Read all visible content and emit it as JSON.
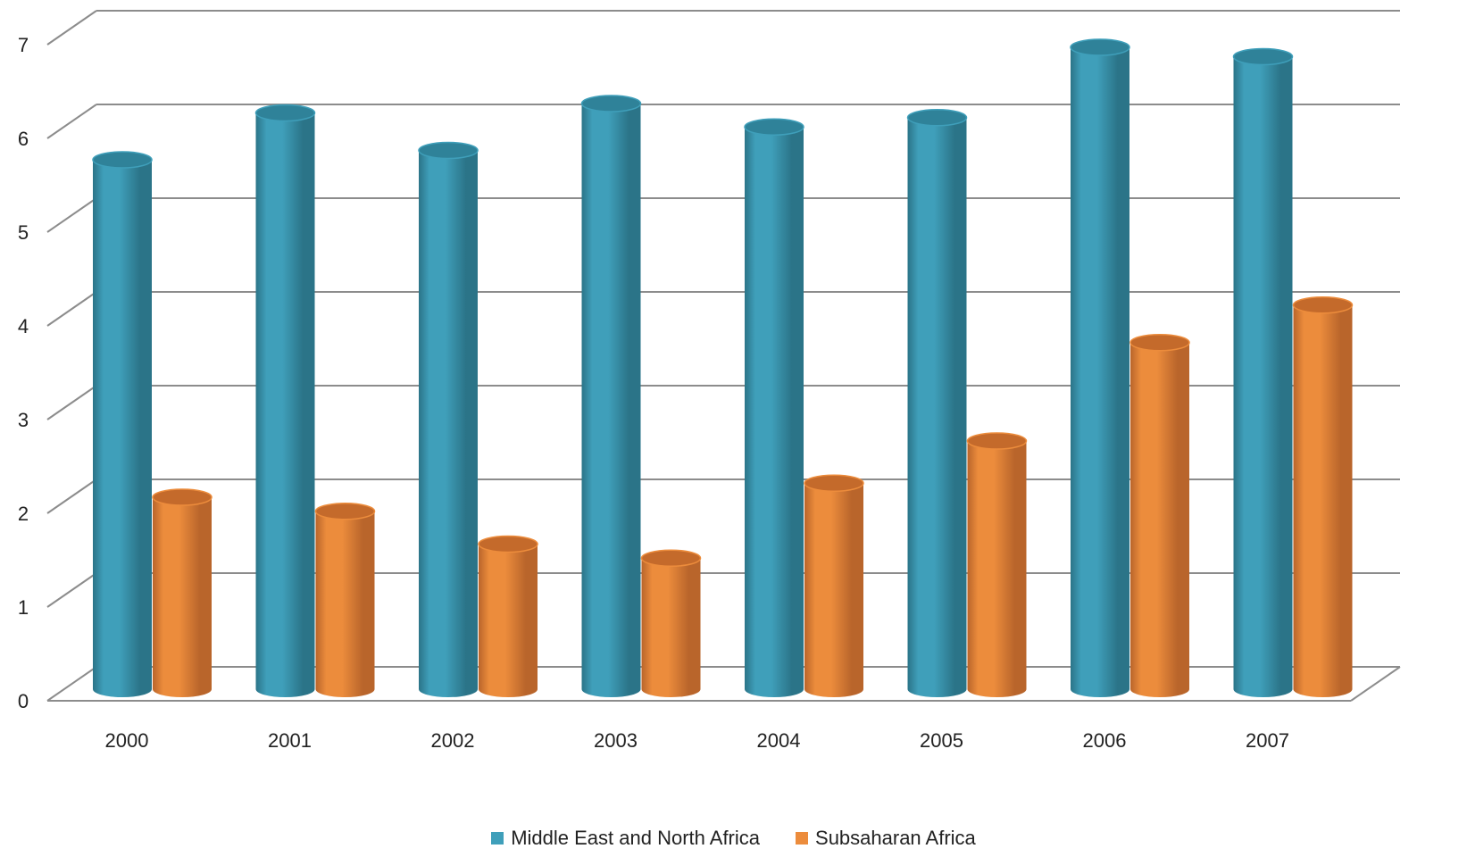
{
  "chart_data": {
    "type": "bar",
    "title": "",
    "xlabel": "",
    "ylabel": "",
    "categories": [
      "2000",
      "2001",
      "2002",
      "2003",
      "2004",
      "2005",
      "2006",
      "2007"
    ],
    "yticks": [
      "0",
      "1",
      "2",
      "3",
      "4",
      "5",
      "6",
      "7"
    ],
    "ylim": [
      0,
      7
    ],
    "grid": true,
    "legend_position": "bottom",
    "series": [
      {
        "name": "Middle East and North Africa",
        "values": [
          5.6,
          6.1,
          5.7,
          6.2,
          5.95,
          6.05,
          6.8,
          6.7
        ],
        "color": "#3f9fba",
        "dark": "#2b7488",
        "top": "#2f8299"
      },
      {
        "name": "Subsaharan Africa",
        "values": [
          2.0,
          1.85,
          1.5,
          1.35,
          2.15,
          2.6,
          3.65,
          4.05
        ],
        "color": "#ec8c3c",
        "dark": "#b9652b",
        "top": "#c46a2b"
      }
    ]
  }
}
